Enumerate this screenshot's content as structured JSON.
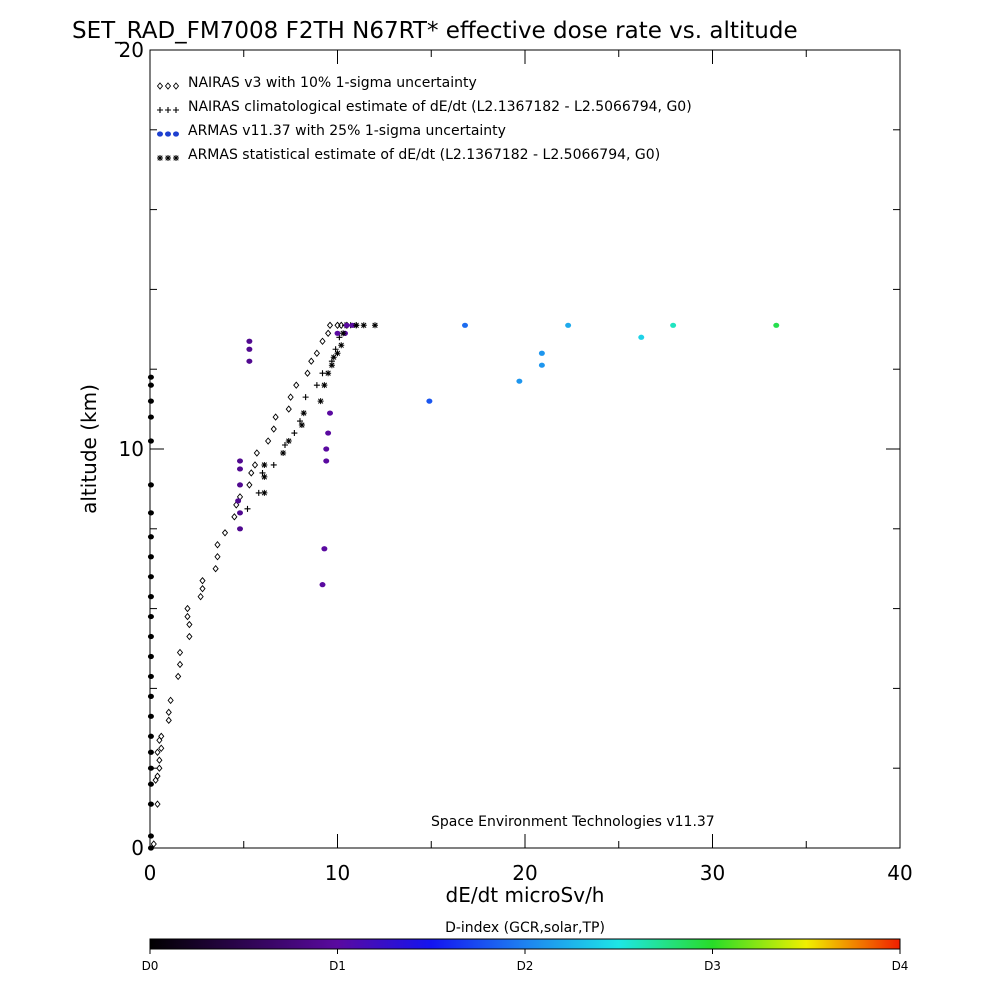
{
  "chart_data": {
    "type": "scatter",
    "title": "SET_RAD_FM7008  F2TH N67RT* effective dose rate vs. altitude",
    "xlabel": "dE/dt microSv/h",
    "ylabel": "altitude (km)",
    "xlim": [
      0,
      40
    ],
    "ylim": [
      0,
      20
    ],
    "x_ticks": [
      "0",
      "10",
      "20",
      "30",
      "40"
    ],
    "y_ticks": [
      "0",
      "10",
      "20"
    ],
    "credit": "Space Environment Technologies v11.37",
    "colorbar": {
      "label": "D-index (GCR,solar,TP)",
      "ticks": [
        {
          "label": "D0",
          "value": 0
        },
        {
          "label": "D1",
          "value": 1
        },
        {
          "label": "D2",
          "value": 2
        },
        {
          "label": "D3",
          "value": 3
        },
        {
          "label": "D4",
          "value": 4
        }
      ]
    },
    "legend_position": "top-left",
    "series": [
      {
        "name": "NAIRAS v3 with 10% 1-sigma uncertainty",
        "marker": "diamond",
        "points": [
          [
            0.2,
            0.1
          ],
          [
            0.4,
            1.1
          ],
          [
            0.3,
            1.7
          ],
          [
            0.4,
            1.8
          ],
          [
            0.5,
            2.0
          ],
          [
            0.5,
            2.2
          ],
          [
            0.4,
            2.4
          ],
          [
            0.6,
            2.5
          ],
          [
            0.5,
            2.7
          ],
          [
            0.6,
            2.8
          ],
          [
            1.0,
            3.2
          ],
          [
            1.0,
            3.4
          ],
          [
            1.1,
            3.7
          ],
          [
            1.5,
            4.3
          ],
          [
            1.6,
            4.6
          ],
          [
            1.6,
            4.9
          ],
          [
            2.1,
            5.3
          ],
          [
            2.1,
            5.6
          ],
          [
            2.0,
            5.8
          ],
          [
            2.0,
            6.0
          ],
          [
            2.7,
            6.3
          ],
          [
            2.8,
            6.5
          ],
          [
            2.8,
            6.7
          ],
          [
            3.5,
            7.0
          ],
          [
            3.6,
            7.3
          ],
          [
            3.6,
            7.6
          ],
          [
            4.0,
            7.9
          ],
          [
            4.5,
            8.3
          ],
          [
            4.6,
            8.6
          ],
          [
            4.8,
            8.8
          ],
          [
            5.3,
            9.1
          ],
          [
            5.4,
            9.4
          ],
          [
            5.6,
            9.6
          ],
          [
            5.7,
            9.9
          ],
          [
            6.3,
            10.2
          ],
          [
            6.6,
            10.5
          ],
          [
            6.7,
            10.8
          ],
          [
            7.4,
            11.0
          ],
          [
            7.5,
            11.3
          ],
          [
            7.8,
            11.6
          ],
          [
            8.4,
            11.9
          ],
          [
            8.6,
            12.2
          ],
          [
            8.9,
            12.4
          ],
          [
            9.2,
            12.7
          ],
          [
            9.5,
            12.9
          ],
          [
            9.6,
            13.1
          ],
          [
            10.0,
            13.1
          ],
          [
            10.2,
            13.1
          ],
          [
            10.5,
            13.1
          ]
        ]
      },
      {
        "name": "NAIRAS climatological estimate of dE/dt (L2.1367182 - L2.5066794, G0)",
        "marker": "plus",
        "points": [
          [
            5.2,
            8.5
          ],
          [
            5.8,
            8.9
          ],
          [
            6.0,
            9.4
          ],
          [
            6.6,
            9.6
          ],
          [
            7.2,
            10.1
          ],
          [
            7.7,
            10.4
          ],
          [
            8.0,
            10.7
          ],
          [
            8.3,
            11.3
          ],
          [
            8.9,
            11.6
          ],
          [
            9.2,
            11.9
          ],
          [
            9.7,
            12.2
          ],
          [
            9.9,
            12.5
          ],
          [
            10.1,
            12.8
          ],
          [
            10.4,
            13.1
          ],
          [
            10.7,
            13.1
          ],
          [
            11.0,
            13.1
          ]
        ]
      },
      {
        "name": "ARMAS v11.37 with 25% 1-sigma uncertainty",
        "marker": "filled-circle",
        "points": [
          {
            "x": 0.05,
            "y": 0.0,
            "d": 0.0
          },
          {
            "x": 0.05,
            "y": 0.3,
            "d": 0.0
          },
          {
            "x": 0.05,
            "y": 1.1,
            "d": 0.0
          },
          {
            "x": 0.05,
            "y": 1.6,
            "d": 0.0
          },
          {
            "x": 0.05,
            "y": 2.0,
            "d": 0.0
          },
          {
            "x": 0.05,
            "y": 2.4,
            "d": 0.0
          },
          {
            "x": 0.05,
            "y": 2.8,
            "d": 0.0
          },
          {
            "x": 0.05,
            "y": 3.3,
            "d": 0.0
          },
          {
            "x": 0.05,
            "y": 3.8,
            "d": 0.0
          },
          {
            "x": 0.05,
            "y": 4.3,
            "d": 0.0
          },
          {
            "x": 0.05,
            "y": 4.8,
            "d": 0.0
          },
          {
            "x": 0.05,
            "y": 5.3,
            "d": 0.0
          },
          {
            "x": 0.05,
            "y": 5.8,
            "d": 0.0
          },
          {
            "x": 0.05,
            "y": 6.3,
            "d": 0.0
          },
          {
            "x": 0.05,
            "y": 6.8,
            "d": 0.0
          },
          {
            "x": 0.05,
            "y": 7.3,
            "d": 0.0
          },
          {
            "x": 0.05,
            "y": 7.8,
            "d": 0.0
          },
          {
            "x": 0.05,
            "y": 8.4,
            "d": 0.0
          },
          {
            "x": 0.05,
            "y": 9.1,
            "d": 0.0
          },
          {
            "x": 0.05,
            "y": 10.2,
            "d": 0.0
          },
          {
            "x": 0.05,
            "y": 10.8,
            "d": 0.0
          },
          {
            "x": 0.05,
            "y": 11.2,
            "d": 0.0
          },
          {
            "x": 0.05,
            "y": 11.6,
            "d": 0.0
          },
          {
            "x": 0.05,
            "y": 11.8,
            "d": 0.0
          },
          {
            "x": 4.8,
            "y": 8.0,
            "d": 0.9
          },
          {
            "x": 4.8,
            "y": 8.4,
            "d": 0.9
          },
          {
            "x": 4.7,
            "y": 8.7,
            "d": 0.9
          },
          {
            "x": 4.8,
            "y": 9.1,
            "d": 0.9
          },
          {
            "x": 4.8,
            "y": 9.5,
            "d": 0.9
          },
          {
            "x": 4.8,
            "y": 9.7,
            "d": 0.9
          },
          {
            "x": 5.3,
            "y": 12.2,
            "d": 0.9
          },
          {
            "x": 5.3,
            "y": 12.5,
            "d": 0.9
          },
          {
            "x": 5.3,
            "y": 12.7,
            "d": 0.9
          },
          {
            "x": 9.2,
            "y": 6.6,
            "d": 1.0
          },
          {
            "x": 9.3,
            "y": 7.5,
            "d": 1.0
          },
          {
            "x": 9.4,
            "y": 9.7,
            "d": 1.0
          },
          {
            "x": 9.4,
            "y": 10.0,
            "d": 1.0
          },
          {
            "x": 9.5,
            "y": 10.4,
            "d": 1.0
          },
          {
            "x": 9.6,
            "y": 10.9,
            "d": 1.0
          },
          {
            "x": 10.0,
            "y": 12.9,
            "d": 1.0
          },
          {
            "x": 10.4,
            "y": 12.9,
            "d": 1.0
          },
          {
            "x": 10.5,
            "y": 13.1,
            "d": 1.0
          },
          {
            "x": 10.8,
            "y": 13.1,
            "d": 1.0
          },
          {
            "x": 14.9,
            "y": 11.2,
            "d": 1.8
          },
          {
            "x": 16.8,
            "y": 13.1,
            "d": 1.9
          },
          {
            "x": 19.7,
            "y": 11.7,
            "d": 2.1
          },
          {
            "x": 20.9,
            "y": 12.1,
            "d": 2.1
          },
          {
            "x": 20.9,
            "y": 12.4,
            "d": 2.1
          },
          {
            "x": 22.3,
            "y": 13.1,
            "d": 2.2
          },
          {
            "x": 26.2,
            "y": 12.8,
            "d": 2.4
          },
          {
            "x": 27.9,
            "y": 13.1,
            "d": 2.6
          },
          {
            "x": 33.4,
            "y": 13.1,
            "d": 2.9
          }
        ]
      },
      {
        "name": "ARMAS statistical estimate of dE/dt (L2.1367182 - L2.5066794, G0)",
        "marker": "asterisk",
        "points": [
          [
            6.1,
            8.9
          ],
          [
            6.1,
            9.3
          ],
          [
            6.1,
            9.6
          ],
          [
            7.1,
            9.9
          ],
          [
            7.4,
            10.2
          ],
          [
            8.1,
            10.6
          ],
          [
            8.2,
            10.9
          ],
          [
            9.1,
            11.2
          ],
          [
            9.3,
            11.6
          ],
          [
            9.5,
            11.9
          ],
          [
            9.7,
            12.1
          ],
          [
            9.8,
            12.3
          ],
          [
            10.0,
            12.4
          ],
          [
            10.2,
            12.6
          ],
          [
            10.3,
            12.9
          ],
          [
            11.0,
            13.1
          ],
          [
            11.4,
            13.1
          ],
          [
            12.0,
            13.1
          ]
        ]
      }
    ]
  }
}
